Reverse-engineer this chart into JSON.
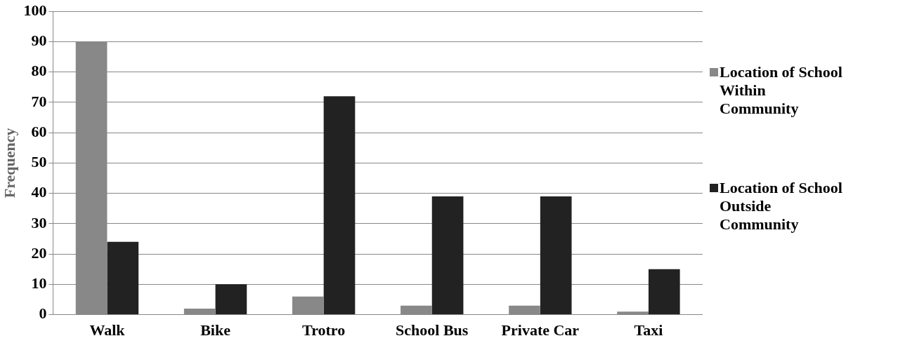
{
  "chart_data": {
    "type": "bar",
    "ylabel": "Frequency",
    "categories": [
      "Walk",
      "Bike",
      "Trotro",
      "School Bus",
      "Private Car",
      "Taxi"
    ],
    "series": [
      {
        "name": "Location of School Within Community",
        "color": "#888888",
        "values": [
          90,
          2,
          6,
          3,
          3,
          1
        ]
      },
      {
        "name": "Location of School Outside Community",
        "color": "#222222",
        "values": [
          24,
          10,
          72,
          39,
          39,
          15
        ]
      }
    ],
    "ylim": [
      0,
      100
    ],
    "yticks": [
      0,
      10,
      20,
      30,
      40,
      50,
      60,
      70,
      80,
      90,
      100
    ],
    "grid": "y",
    "legend": "right"
  }
}
